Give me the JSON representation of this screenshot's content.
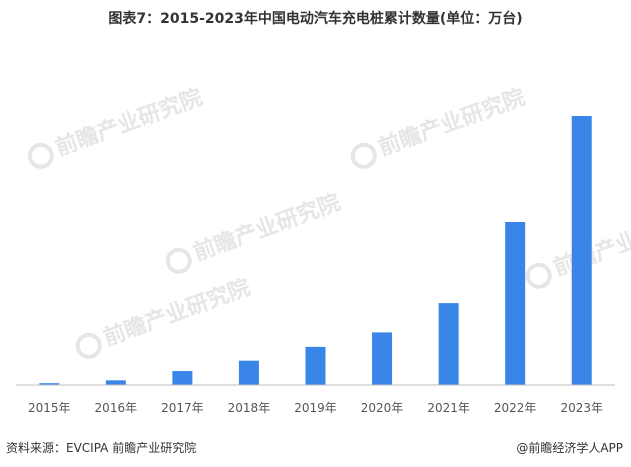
{
  "title": "图表7：2015-2023年中国电动汽车充电桩累计数量(单位：万台)",
  "source_text": "资料来源：EVCIPA 前瞻产业研究院",
  "brand_text": "@前瞻经济学人APP",
  "watermark_text": "前瞻产业研究院",
  "colors": {
    "bar": "#3a86e8",
    "axis": "#bfbfbf"
  },
  "chart_data": {
    "type": "bar",
    "title": "图表7：2015-2023年中国电动汽车充电桩累计数量(单位：万台)",
    "categories": [
      "2015年",
      "2016年",
      "2017年",
      "2018年",
      "2019年",
      "2020年",
      "2021年",
      "2022年",
      "2023年"
    ],
    "values": [
      5.8,
      15.0,
      44.6,
      77.7,
      121.9,
      168.1,
      261.7,
      521.0,
      859.6
    ],
    "xlabel": "",
    "ylabel": "",
    "ylim": [
      0,
      859.6
    ],
    "grid": false,
    "legend": "none"
  }
}
